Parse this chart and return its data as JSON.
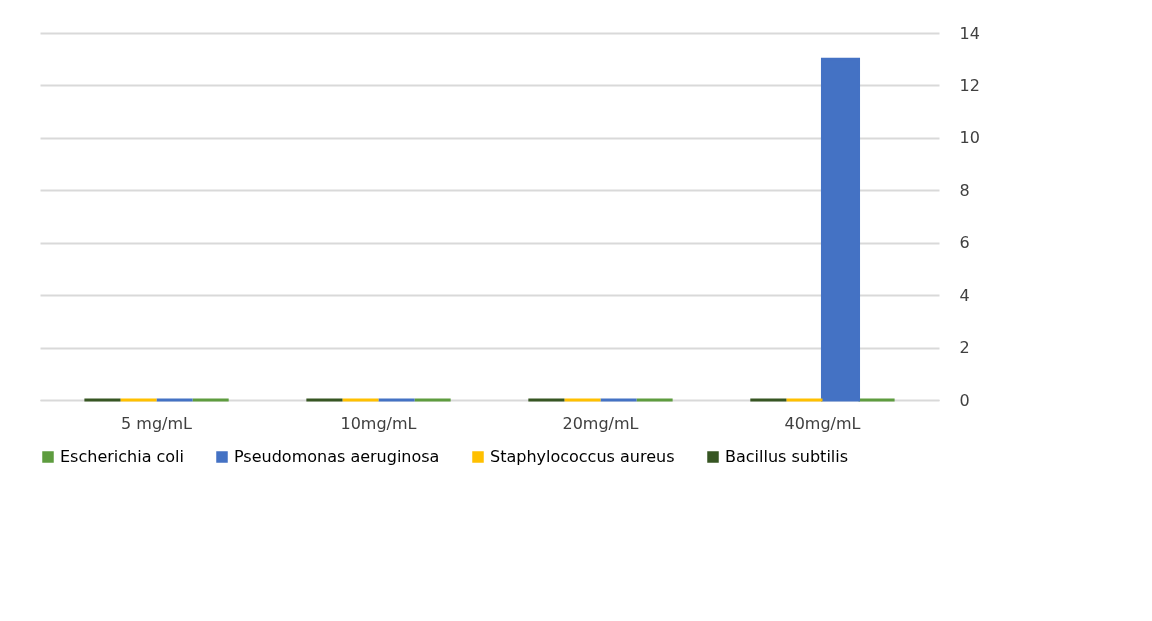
{
  "chart_data": {
    "type": "bar",
    "categories": [
      "5 mg/mL",
      "10mg/mL",
      "20mg/mL",
      "40mg/mL"
    ],
    "series": [
      {
        "name": "Escherichia coli",
        "color": "#5e9c3f",
        "values": [
          0,
          0,
          0,
          0
        ]
      },
      {
        "name": "Pseudomonas aeruginosa",
        "color": "#4472c4",
        "values": [
          0,
          0,
          0,
          13
        ]
      },
      {
        "name": "Staphylococcus aureus",
        "color": "#ffc000",
        "values": [
          0,
          0,
          0,
          0
        ]
      },
      {
        "name": "Bacillus subtilis",
        "color": "#375623",
        "values": [
          0,
          0,
          0,
          0
        ]
      }
    ],
    "ylim": [
      0,
      14
    ],
    "yticks": [
      0,
      2,
      4,
      6,
      8,
      10,
      12,
      14
    ],
    "grid": "y",
    "legend": "bottom"
  }
}
